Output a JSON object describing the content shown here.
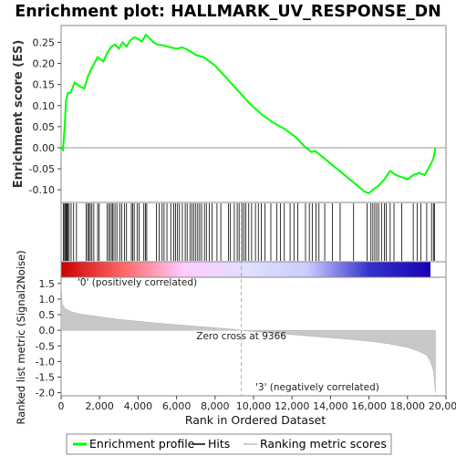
{
  "chart_data": [
    {
      "type": "line",
      "title": "Enrichment plot: HALLMARK_UV_RESPONSE_DN",
      "ylabel": "Enrichment score (ES)",
      "ylim": [
        -0.13,
        0.29
      ],
      "xlim": [
        0,
        20000
      ],
      "y_ticks": [
        "0.25",
        "0.20",
        "0.15",
        "0.10",
        "0.05",
        "0.00",
        "-0.05",
        "-0.10"
      ],
      "line_color": "#00ff00",
      "series": [
        {
          "name": "Enrichment profile",
          "x": [
            0,
            100,
            200,
            250,
            350,
            500,
            700,
            900,
            1200,
            1400,
            1600,
            1900,
            2200,
            2400,
            2600,
            2800,
            3000,
            3200,
            3400,
            3600,
            3800,
            4000,
            4200,
            4400,
            4600,
            4800,
            5000,
            5400,
            5700,
            6000,
            6300,
            6600,
            7000,
            7400,
            8000,
            8600,
            9200,
            9800,
            10400,
            11000,
            11600,
            12200,
            12600,
            13000,
            13200,
            13400,
            13800,
            14200,
            14600,
            15000,
            15400,
            15800,
            16000,
            16200,
            16500,
            16800,
            17100,
            17400,
            17700,
            18000,
            18300,
            18600,
            18900,
            19200,
            19350,
            19450
          ],
          "y": [
            0.0,
            -0.005,
            0.06,
            0.11,
            0.13,
            0.13,
            0.155,
            0.148,
            0.14,
            0.17,
            0.19,
            0.215,
            0.205,
            0.225,
            0.24,
            0.245,
            0.235,
            0.25,
            0.24,
            0.255,
            0.262,
            0.258,
            0.252,
            0.268,
            0.26,
            0.25,
            0.245,
            0.242,
            0.238,
            0.235,
            0.238,
            0.232,
            0.22,
            0.215,
            0.195,
            0.165,
            0.135,
            0.105,
            0.08,
            0.06,
            0.045,
            0.025,
            0.005,
            -0.01,
            -0.008,
            -0.015,
            -0.03,
            -0.045,
            -0.06,
            -0.075,
            -0.09,
            -0.105,
            -0.108,
            -0.1,
            -0.09,
            -0.075,
            -0.055,
            -0.065,
            -0.07,
            -0.075,
            -0.065,
            -0.06,
            -0.065,
            -0.04,
            -0.025,
            0.0
          ]
        }
      ]
    },
    {
      "type": "scatter",
      "subtitle": "Hits",
      "hits_x": [
        120,
        180,
        230,
        270,
        310,
        350,
        420,
        520,
        650,
        800,
        1300,
        1380,
        1450,
        1520,
        1600,
        1700,
        1900,
        1980,
        2400,
        2480,
        2560,
        2650,
        2700,
        2800,
        2900,
        3050,
        3150,
        3300,
        3400,
        3650,
        3720,
        3800,
        3950,
        4050,
        4300,
        4380,
        4450,
        4950,
        5100,
        5250,
        5350,
        5500,
        5700,
        5850,
        5950,
        6050,
        6150,
        6300,
        6450,
        6550,
        6700,
        6800,
        6900,
        7000,
        7100,
        7200,
        7300,
        7450,
        7550,
        7700,
        7850,
        8100,
        8300,
        8700,
        8800,
        9000,
        9150,
        9250,
        9400,
        9500,
        9600,
        9750,
        9900,
        10100,
        10250,
        10400,
        10600,
        10900,
        11200,
        11400,
        11600,
        11900,
        12100,
        12300,
        12700,
        12900,
        13050,
        13250,
        13400,
        13700,
        14100,
        14500,
        15200,
        15900,
        16100,
        16200,
        16300,
        16400,
        16500,
        16650,
        16800,
        16900,
        17100,
        17300,
        17700,
        18300,
        18500,
        18700,
        19000,
        19250,
        19350,
        19400
      ]
    },
    {
      "type": "heatmap",
      "subtitle": "Ranking color bar",
      "stops": [
        "#cc0000",
        "#ff6666",
        "#ffccff",
        "#e0e0ff",
        "#ccccff",
        "#3333cc",
        "#1a00b3"
      ]
    },
    {
      "type": "area",
      "ylabel": "Ranked list metric (Signal2Noise)",
      "xlabel": "Rank in Ordered Dataset",
      "ylim": [
        -2.1,
        1.7
      ],
      "y_ticks": [
        "1.5",
        "1.0",
        "0.5",
        "0.0",
        "-0.5",
        "-1.0",
        "-1.5",
        "-2.0"
      ],
      "x_ticks": [
        "0",
        "2,000",
        "4,000",
        "6,000",
        "8,000",
        "10,000",
        "12,000",
        "14,000",
        "16,000",
        "18,000",
        "20,000"
      ],
      "x": [
        0,
        50,
        200,
        500,
        1000,
        2000,
        3000,
        4000,
        5000,
        6000,
        7000,
        8000,
        9000,
        9366,
        10000,
        11000,
        12000,
        13000,
        14000,
        15000,
        16000,
        17000,
        18000,
        18500,
        19000,
        19200,
        19350,
        19450
      ],
      "values": [
        1.5,
        0.85,
        0.7,
        0.6,
        0.52,
        0.43,
        0.35,
        0.29,
        0.23,
        0.18,
        0.13,
        0.08,
        0.03,
        0.0,
        -0.04,
        -0.09,
        -0.14,
        -0.19,
        -0.24,
        -0.29,
        -0.35,
        -0.43,
        -0.55,
        -0.65,
        -0.8,
        -1.0,
        -1.3,
        -2.0
      ],
      "zero_cross_label": "Zero cross at 9366",
      "positive_label": "'0' (positively correlated)",
      "negative_label": "'3' (negatively correlated)",
      "positive_color": "#cc0000",
      "negative_color": "#0000cc"
    }
  ],
  "legend": {
    "items": [
      {
        "label": "Enrichment profile",
        "color": "#00ff00"
      },
      {
        "label": "Hits",
        "color": "#000000"
      },
      {
        "label": "Ranking metric scores",
        "color": "#c0c0c0"
      }
    ]
  }
}
